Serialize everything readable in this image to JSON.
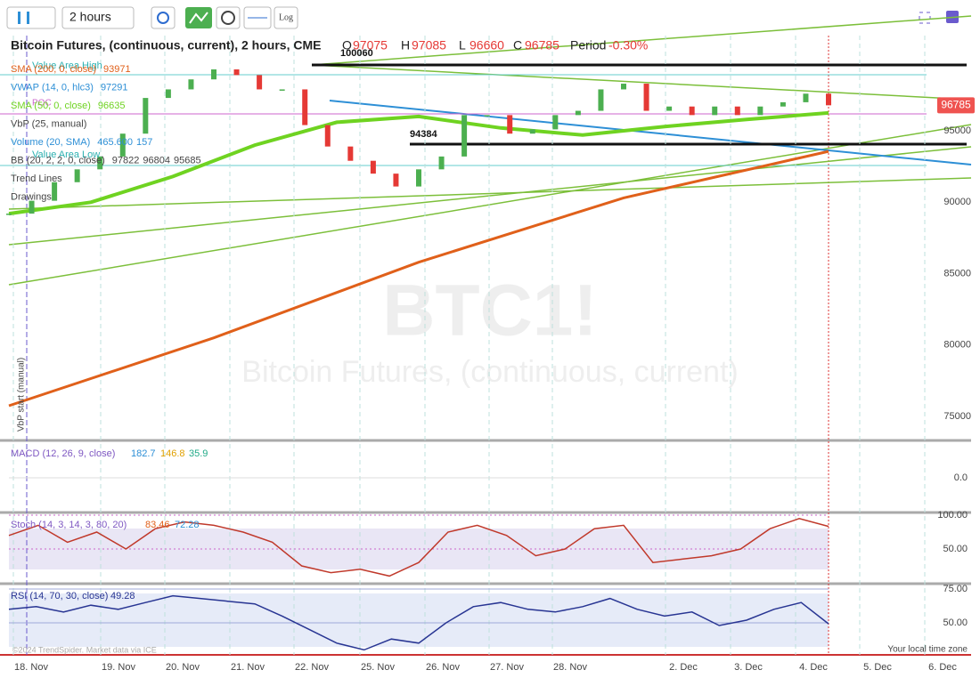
{
  "toolbar": {
    "interval": "2 hours",
    "log": "Log"
  },
  "header": {
    "title": "Bitcoin Futures, (continuous, current), 2 hours, CME",
    "o_label": "O",
    "o": "97075",
    "h_label": "H",
    "h": "97085",
    "l_label": "L",
    "l": "96660",
    "c_label": "C",
    "c": "96785",
    "period_label": "Period",
    "period": "-0.30%"
  },
  "indicators": [
    {
      "label": "SMA (200, 0, close)",
      "values": [
        "93971"
      ],
      "color": "#e0601a"
    },
    {
      "label": "VWAP (14, 0, hlc3)",
      "values": [
        "97291"
      ],
      "color": "#2d8fd6"
    },
    {
      "label": "SMA (50, 0, close)",
      "values": [
        "96635"
      ],
      "color": "#6fd321"
    },
    {
      "label": "VbP (25, manual)",
      "values": [],
      "color": "#444444"
    },
    {
      "label": "Volume (20, SMA)",
      "values": [
        "465.600",
        "157"
      ],
      "color": "#2d8fd6"
    },
    {
      "label": "BB (20, 2, 2, 0, close)",
      "values": [
        "97822",
        "96804",
        "95685"
      ],
      "color": "#444444"
    },
    {
      "label": "Trend Lines",
      "values": [],
      "color": "#444444"
    },
    {
      "label": "Drawings",
      "values": [],
      "color": "#444444"
    }
  ],
  "annotations": {
    "value_area_high": "Value Area High",
    "poc": "POC",
    "value_area_low": "Value Area Low",
    "high_marker": "100060",
    "low_marker": "94384",
    "vbp_start": "VbP start (manual)"
  },
  "watermark": {
    "symbol": "BTC1!",
    "name": "Bitcoin Futures, (continuous, current)"
  },
  "price_axis": {
    "ticks": [
      95000,
      90000,
      85000,
      80000,
      75000
    ],
    "last": 96785
  },
  "price_close": [
    89200,
    90100,
    91400,
    92300,
    93200,
    94800,
    97300,
    97900,
    98600,
    99300,
    98900,
    97900,
    97900,
    95400,
    93900,
    92900,
    92000,
    91100,
    92300,
    93200,
    96100,
    96100,
    94800,
    95100,
    96100,
    96400,
    97900,
    98300,
    96400,
    96700,
    96100,
    96700,
    96100,
    96700,
    97000,
    97600,
    96785
  ],
  "sma200": [
    75750,
    80500,
    85800,
    90300,
    93560
  ],
  "sma50": [
    89200,
    90000,
    91800,
    94000,
    95600,
    96000,
    95200,
    94700,
    95300,
    95800,
    96250
  ],
  "macd": {
    "label": "MACD (12, 26, 9, close)",
    "values": [
      "182.7",
      "146.8",
      "35.9"
    ],
    "ticks": [
      {
        "value": 0,
        "label": "0.0"
      }
    ]
  },
  "stoch": {
    "label": "Stoch (14, 3, 14, 3, 80, 20)",
    "values": [
      "83.46",
      "72.28"
    ],
    "ticks": [
      {
        "value": 100,
        "label": "100.00"
      },
      {
        "value": 50,
        "label": "50.00"
      }
    ],
    "k": [
      70,
      85,
      60,
      75,
      50,
      80,
      90,
      85,
      75,
      60,
      25,
      15,
      20,
      10,
      30,
      75,
      85,
      70,
      40,
      50,
      80,
      85,
      30,
      35,
      40,
      50,
      80,
      95,
      83.46
    ]
  },
  "rsi": {
    "label": "RSI (14, 70, 30, close)",
    "value": "49.28",
    "ticks": [
      {
        "value": 75,
        "label": "75.00"
      },
      {
        "value": 50,
        "label": "50.00"
      }
    ],
    "values": [
      60,
      62,
      58,
      63,
      60,
      65,
      70,
      68,
      66,
      64,
      55,
      45,
      35,
      30,
      38,
      35,
      50,
      62,
      65,
      60,
      58,
      62,
      68,
      60,
      55,
      58,
      48,
      52,
      60,
      65,
      49.28
    ]
  },
  "dates": [
    "18. Nov",
    "19. Nov",
    "20. Nov",
    "21. Nov",
    "22. Nov",
    "25. Nov",
    "26. Nov",
    "27. Nov",
    "28. Nov",
    "2. Dec",
    "3. Dec",
    "4. Dec",
    "5. Dec",
    "6. Dec"
  ],
  "footer": {
    "copyright": "©2024 TrendSpider. Market data via ICE",
    "timezone": "Your local time zone"
  }
}
